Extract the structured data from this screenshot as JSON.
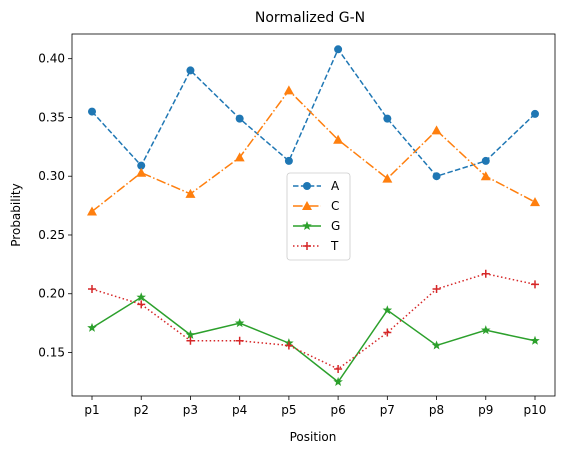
{
  "chart_data": {
    "type": "line",
    "title": "Normalized G-N",
    "xlabel": "Position",
    "ylabel": "Probability",
    "categories": [
      "p1",
      "p2",
      "p3",
      "p4",
      "p5",
      "p6",
      "p7",
      "p8",
      "p9",
      "p10"
    ],
    "ylim": [
      0.113,
      0.421
    ],
    "yticks": [
      "0.15",
      "0.20",
      "0.25",
      "0.30",
      "0.35",
      "0.40"
    ],
    "ytick_values": [
      0.15,
      0.2,
      0.25,
      0.3,
      0.35,
      0.4
    ],
    "grid": false,
    "legend_position": "center",
    "series": [
      {
        "name": "A",
        "color": "#1f77b4",
        "dash": "dashed",
        "marker": "circle",
        "values": [
          0.355,
          0.309,
          0.39,
          0.349,
          0.313,
          0.408,
          0.349,
          0.3,
          0.313,
          0.353
        ]
      },
      {
        "name": "C",
        "color": "#ff7f0e",
        "dash": "dashdot",
        "marker": "triangle",
        "values": [
          0.27,
          0.303,
          0.285,
          0.316,
          0.373,
          0.331,
          0.298,
          0.339,
          0.3,
          0.278
        ]
      },
      {
        "name": "G",
        "color": "#2ca02c",
        "dash": "solid",
        "marker": "star",
        "values": [
          0.171,
          0.197,
          0.165,
          0.175,
          0.158,
          0.125,
          0.186,
          0.156,
          0.169,
          0.16
        ]
      },
      {
        "name": "T",
        "color": "#d62728",
        "dash": "dotted",
        "marker": "plus",
        "values": [
          0.204,
          0.191,
          0.16,
          0.16,
          0.156,
          0.136,
          0.167,
          0.204,
          0.217,
          0.208
        ]
      }
    ]
  }
}
